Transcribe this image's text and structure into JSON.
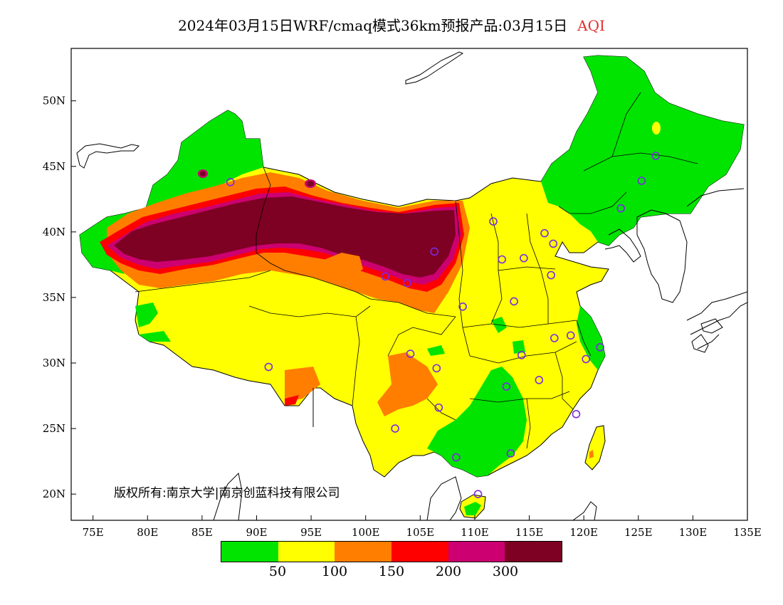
{
  "title": {
    "main": "2024年03月15日WRF/cmaq模式36km预报产品:03月15日",
    "variable": "AQI"
  },
  "copyright": "版权所有:南京大学|南京创蓝科技有限公司",
  "axes": {
    "lat_ticks": [
      "50N",
      "45N",
      "40N",
      "35N",
      "30N",
      "25N",
      "20N"
    ],
    "lon_ticks": [
      "75E",
      "80E",
      "85E",
      "90E",
      "95E",
      "100E",
      "105E",
      "110E",
      "115E",
      "120E",
      "125E",
      "130E",
      "135E"
    ]
  },
  "legend": {
    "colors": [
      "#00e400",
      "#ffff00",
      "#ff7e00",
      "#ff0000",
      "#cc0070",
      "#7e0023"
    ],
    "ticks": [
      "50",
      "100",
      "150",
      "200",
      "300"
    ]
  },
  "chart_data": {
    "type": "heatmap",
    "xlim": [
      73,
      135
    ],
    "ylim": [
      18,
      54
    ],
    "levels": [
      50,
      100,
      150,
      200,
      300
    ],
    "cities": [
      {
        "lon": 87.6,
        "lat": 43.8
      },
      {
        "lon": 91.1,
        "lat": 29.7
      },
      {
        "lon": 101.8,
        "lat": 36.6
      },
      {
        "lon": 103.8,
        "lat": 36.1
      },
      {
        "lon": 106.3,
        "lat": 38.5
      },
      {
        "lon": 111.7,
        "lat": 40.8
      },
      {
        "lon": 112.5,
        "lat": 37.9
      },
      {
        "lon": 114.5,
        "lat": 38.0
      },
      {
        "lon": 116.4,
        "lat": 39.9
      },
      {
        "lon": 117.2,
        "lat": 39.1
      },
      {
        "lon": 117.0,
        "lat": 36.7
      },
      {
        "lon": 113.6,
        "lat": 34.7
      },
      {
        "lon": 108.9,
        "lat": 34.3
      },
      {
        "lon": 104.1,
        "lat": 30.7
      },
      {
        "lon": 106.5,
        "lat": 29.6
      },
      {
        "lon": 106.7,
        "lat": 26.6
      },
      {
        "lon": 102.7,
        "lat": 25.0
      },
      {
        "lon": 108.3,
        "lat": 22.8
      },
      {
        "lon": 113.3,
        "lat": 23.1
      },
      {
        "lon": 110.3,
        "lat": 20.0
      },
      {
        "lon": 112.9,
        "lat": 28.2
      },
      {
        "lon": 114.3,
        "lat": 30.6
      },
      {
        "lon": 115.9,
        "lat": 28.7
      },
      {
        "lon": 117.3,
        "lat": 31.9
      },
      {
        "lon": 118.8,
        "lat": 32.1
      },
      {
        "lon": 120.2,
        "lat": 30.3
      },
      {
        "lon": 121.5,
        "lat": 31.2
      },
      {
        "lon": 119.3,
        "lat": 26.1
      },
      {
        "lon": 123.4,
        "lat": 41.8
      },
      {
        "lon": 125.3,
        "lat": 43.9
      },
      {
        "lon": 126.6,
        "lat": 45.8
      }
    ]
  }
}
